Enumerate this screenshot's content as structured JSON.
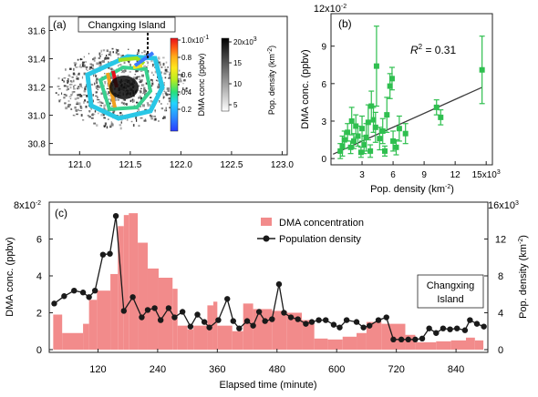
{
  "chart_data": [
    {
      "panel": "a",
      "type": "heatmap",
      "panel_label": "(a)",
      "annotation": "Changxing Island",
      "x_ticks": [
        "121.0",
        "121.5",
        "122.0",
        "122.5",
        "123.0"
      ],
      "y_ticks": [
        "30.8",
        "31.0",
        "31.2",
        "31.4",
        "31.6"
      ],
      "xlim": [
        120.7,
        123.05
      ],
      "ylim": [
        30.72,
        31.7
      ],
      "colorbar_dma": {
        "label": "DMA conc (ppbv)",
        "ticks": [
          "0.2",
          "0.4",
          "0.6",
          "0.8",
          "1.0x10"
        ],
        "exponent": "-1",
        "colors": [
          "#2a3cff",
          "#2b8cff",
          "#22d4ff",
          "#26e07a",
          "#b6ee1f",
          "#ffe81c",
          "#ffae1a",
          "#ff5a14",
          "#e8101a"
        ]
      },
      "colorbar_pop": {
        "label": "Pop. density (km",
        "label_sup": "-2",
        "label_end": ")",
        "ticks": [
          "5",
          "10",
          "15",
          "20x10"
        ],
        "exponent": "3"
      }
    },
    {
      "panel": "b",
      "type": "scatter",
      "panel_label": "(b)",
      "r2_label": "R",
      "r2_sup": "2",
      "r2_value": " = 0.31",
      "xlabel": "Pop. density (km",
      "xlabel_sup": "-2",
      "xlabel_end": ")",
      "ylabel": "DMA conc. (ppbv)",
      "y_exp_base": "12x10",
      "y_exp": "-2",
      "x_ticks": [
        "3",
        "6",
        "9",
        "12",
        "15x10"
      ],
      "x_exp": "3",
      "y_ticks": [
        "0",
        "3",
        "6",
        "9"
      ],
      "xlim": [
        0,
        15.6
      ],
      "ylim": [
        -0.5,
        11.6
      ],
      "color": "#2fbf4f",
      "fit": {
        "x": [
          0.2,
          14.6
        ],
        "y": [
          0.35,
          5.7
        ]
      },
      "points": [
        {
          "x": 0.9,
          "y": 0.6,
          "e": 0.6
        },
        {
          "x": 1.1,
          "y": 1.0,
          "e": 0.8
        },
        {
          "x": 1.3,
          "y": 1.5,
          "e": 0.7
        },
        {
          "x": 1.6,
          "y": 2.1,
          "e": 0.7
        },
        {
          "x": 1.9,
          "y": 0.9,
          "e": 0.5
        },
        {
          "x": 2.0,
          "y": 3.0,
          "e": 1.1
        },
        {
          "x": 2.2,
          "y": 1.4,
          "e": 0.6
        },
        {
          "x": 2.4,
          "y": 2.6,
          "e": 0.9
        },
        {
          "x": 2.6,
          "y": 1.8,
          "e": 0.8
        },
        {
          "x": 2.9,
          "y": 0.5,
          "e": 0.4
        },
        {
          "x": 3.0,
          "y": 2.4,
          "e": 1.0
        },
        {
          "x": 3.2,
          "y": 1.1,
          "e": 0.7
        },
        {
          "x": 3.4,
          "y": 1.7,
          "e": 1.1
        },
        {
          "x": 3.6,
          "y": 2.9,
          "e": 1.4
        },
        {
          "x": 3.8,
          "y": 0.6,
          "e": 0.5
        },
        {
          "x": 3.9,
          "y": 4.2,
          "e": 1.2
        },
        {
          "x": 4.1,
          "y": 3.1,
          "e": 1.0
        },
        {
          "x": 4.3,
          "y": 2.5,
          "e": 1.2
        },
        {
          "x": 4.4,
          "y": 7.4,
          "e": 3.2
        },
        {
          "x": 4.7,
          "y": 1.6,
          "e": 0.9
        },
        {
          "x": 5.0,
          "y": 2.2,
          "e": 1.0
        },
        {
          "x": 5.2,
          "y": 0.6,
          "e": 0.4
        },
        {
          "x": 5.4,
          "y": 3.5,
          "e": 1.4
        },
        {
          "x": 5.7,
          "y": 5.8,
          "e": 1.0
        },
        {
          "x": 5.9,
          "y": 6.4,
          "e": 0.9
        },
        {
          "x": 6.0,
          "y": 1.4,
          "e": 0.8
        },
        {
          "x": 6.3,
          "y": 0.9,
          "e": 0.6
        },
        {
          "x": 6.6,
          "y": 2.4,
          "e": 1.0
        },
        {
          "x": 7.2,
          "y": 2.0,
          "e": 0.8
        },
        {
          "x": 10.2,
          "y": 4.1,
          "e": 0.6
        },
        {
          "x": 10.6,
          "y": 3.3,
          "e": 0.6
        },
        {
          "x": 14.6,
          "y": 7.1,
          "e": 2.7
        }
      ]
    },
    {
      "panel": "c",
      "type": "bar",
      "panel_label": "(c)",
      "annotation_line1": "Changxing",
      "annotation_line2": "Island",
      "xlabel": "Elapsed time (minute)",
      "ylabel_left": "DMA conc. (ppbv)",
      "ylabel_right": "Pop. density (km",
      "ylabel_right_sup": "-2",
      "ylabel_right_end": ")",
      "left_exp_base": "8x10",
      "left_exp": "-2",
      "right_exp_base": "16x10",
      "right_exp": "3",
      "x_ticks": [
        "120",
        "240",
        "360",
        "480",
        "600",
        "720",
        "840"
      ],
      "y_left_ticks": [
        "0",
        "2",
        "4",
        "6"
      ],
      "y_right_ticks": [
        "0",
        "4",
        "8",
        "12"
      ],
      "xlim": [
        22,
        904
      ],
      "ylim_left": [
        -0.15,
        8.0
      ],
      "ylim_right": [
        -0.3,
        16.0
      ],
      "bar_color": "#f28b8b",
      "line_color": "#1a1a1a",
      "legend": [
        {
          "label": "DMA  concentration",
          "kind": "bar"
        },
        {
          "label": "Population density",
          "kind": "line"
        }
      ],
      "bars": [
        {
          "t0": 30,
          "t1": 48,
          "v": 1.9
        },
        {
          "t0": 48,
          "t1": 90,
          "v": 0.9
        },
        {
          "t0": 90,
          "t1": 102,
          "v": 1.4
        },
        {
          "t0": 102,
          "t1": 118,
          "v": 2.7
        },
        {
          "t0": 118,
          "t1": 145,
          "v": 3.2
        },
        {
          "t0": 145,
          "t1": 160,
          "v": 4.1
        },
        {
          "t0": 160,
          "t1": 172,
          "v": 6.7
        },
        {
          "t0": 172,
          "t1": 182,
          "v": 7.3
        },
        {
          "t0": 182,
          "t1": 200,
          "v": 7.4
        },
        {
          "t0": 200,
          "t1": 220,
          "v": 5.8
        },
        {
          "t0": 220,
          "t1": 242,
          "v": 4.4
        },
        {
          "t0": 242,
          "t1": 270,
          "v": 3.9
        },
        {
          "t0": 270,
          "t1": 280,
          "v": 3.3
        },
        {
          "t0": 280,
          "t1": 300,
          "v": 1.3
        },
        {
          "t0": 300,
          "t1": 312,
          "v": 1.1
        },
        {
          "t0": 312,
          "t1": 340,
          "v": 1.3
        },
        {
          "t0": 340,
          "t1": 352,
          "v": 2.4
        },
        {
          "t0": 352,
          "t1": 360,
          "v": 2.6
        },
        {
          "t0": 360,
          "t1": 390,
          "v": 1.3
        },
        {
          "t0": 390,
          "t1": 412,
          "v": 1.0
        },
        {
          "t0": 412,
          "t1": 432,
          "v": 2.5
        },
        {
          "t0": 432,
          "t1": 470,
          "v": 2.2
        },
        {
          "t0": 470,
          "t1": 500,
          "v": 2.1
        },
        {
          "t0": 500,
          "t1": 530,
          "v": 2.0
        },
        {
          "t0": 530,
          "t1": 555,
          "v": 1.6
        },
        {
          "t0": 555,
          "t1": 582,
          "v": 0.6
        },
        {
          "t0": 582,
          "t1": 612,
          "v": 0.55
        },
        {
          "t0": 612,
          "t1": 640,
          "v": 0.7
        },
        {
          "t0": 640,
          "t1": 660,
          "v": 0.9
        },
        {
          "t0": 660,
          "t1": 690,
          "v": 1.5
        },
        {
          "t0": 690,
          "t1": 738,
          "v": 1.4
        },
        {
          "t0": 738,
          "t1": 758,
          "v": 0.8
        },
        {
          "t0": 758,
          "t1": 800,
          "v": 0.4
        },
        {
          "t0": 800,
          "t1": 830,
          "v": 0.45
        },
        {
          "t0": 830,
          "t1": 860,
          "v": 0.5
        },
        {
          "t0": 860,
          "t1": 878,
          "v": 0.65
        },
        {
          "t0": 878,
          "t1": 895,
          "v": 0.5
        }
      ],
      "line": [
        {
          "t": 32,
          "v": 5.0
        },
        {
          "t": 52,
          "v": 5.8
        },
        {
          "t": 72,
          "v": 6.4
        },
        {
          "t": 90,
          "v": 6.2
        },
        {
          "t": 102,
          "v": 5.7
        },
        {
          "t": 114,
          "v": 6.4
        },
        {
          "t": 130,
          "v": 10.3
        },
        {
          "t": 144,
          "v": 10.4
        },
        {
          "t": 156,
          "v": 14.5
        },
        {
          "t": 172,
          "v": 4.2
        },
        {
          "t": 190,
          "v": 5.7
        },
        {
          "t": 208,
          "v": 3.5
        },
        {
          "t": 220,
          "v": 4.3
        },
        {
          "t": 234,
          "v": 4.5
        },
        {
          "t": 246,
          "v": 3.2
        },
        {
          "t": 262,
          "v": 4.5
        },
        {
          "t": 274,
          "v": 3.5
        },
        {
          "t": 290,
          "v": 4.1
        },
        {
          "t": 306,
          "v": 2.5
        },
        {
          "t": 320,
          "v": 3.8
        },
        {
          "t": 334,
          "v": 3.0
        },
        {
          "t": 344,
          "v": 2.4
        },
        {
          "t": 362,
          "v": 3.2
        },
        {
          "t": 380,
          "v": 5.5
        },
        {
          "t": 392,
          "v": 3.1
        },
        {
          "t": 404,
          "v": 2.3
        },
        {
          "t": 420,
          "v": 3.1
        },
        {
          "t": 432,
          "v": 2.6
        },
        {
          "t": 444,
          "v": 4.1
        },
        {
          "t": 456,
          "v": 3.1
        },
        {
          "t": 470,
          "v": 3.3
        },
        {
          "t": 484,
          "v": 7.1
        },
        {
          "t": 494,
          "v": 4.0
        },
        {
          "t": 508,
          "v": 3.5
        },
        {
          "t": 522,
          "v": 3.3
        },
        {
          "t": 538,
          "v": 2.8
        },
        {
          "t": 550,
          "v": 3.0
        },
        {
          "t": 564,
          "v": 3.2
        },
        {
          "t": 578,
          "v": 3.2
        },
        {
          "t": 594,
          "v": 2.7
        },
        {
          "t": 606,
          "v": 2.4
        },
        {
          "t": 620,
          "v": 3.2
        },
        {
          "t": 640,
          "v": 3.0
        },
        {
          "t": 654,
          "v": 2.4
        },
        {
          "t": 666,
          "v": 2.6
        },
        {
          "t": 684,
          "v": 3.2
        },
        {
          "t": 700,
          "v": 3.5
        },
        {
          "t": 714,
          "v": 1.1
        },
        {
          "t": 730,
          "v": 1.1
        },
        {
          "t": 744,
          "v": 1.1
        },
        {
          "t": 758,
          "v": 1.1
        },
        {
          "t": 772,
          "v": 1.2
        },
        {
          "t": 786,
          "v": 2.3
        },
        {
          "t": 800,
          "v": 1.8
        },
        {
          "t": 814,
          "v": 2.3
        },
        {
          "t": 828,
          "v": 2.2
        },
        {
          "t": 842,
          "v": 2.3
        },
        {
          "t": 858,
          "v": 2.1
        },
        {
          "t": 868,
          "v": 3.2
        },
        {
          "t": 882,
          "v": 2.8
        },
        {
          "t": 896,
          "v": 2.5
        }
      ]
    }
  ]
}
